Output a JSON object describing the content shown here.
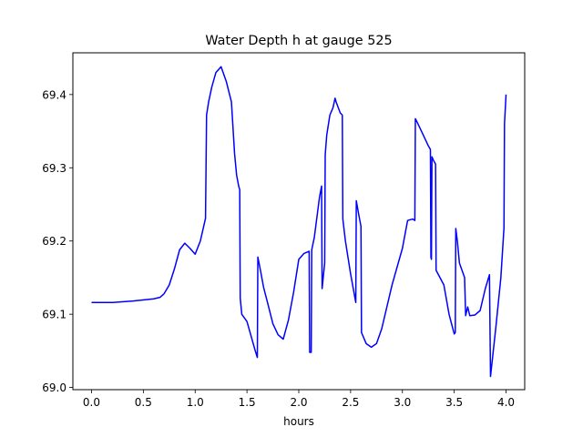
{
  "chart_data": {
    "type": "line",
    "title": "Water Depth h at gauge 525",
    "xlabel": "hours",
    "ylabel": "",
    "xlim": [
      -0.18,
      4.18
    ],
    "ylim": [
      68.997,
      69.457
    ],
    "grid": false,
    "xticks": [
      0.0,
      0.5,
      1.0,
      1.5,
      2.0,
      2.5,
      3.0,
      3.5,
      4.0
    ],
    "xtick_labels": [
      "0.0",
      "0.5",
      "1.0",
      "1.5",
      "2.0",
      "2.5",
      "3.0",
      "3.5",
      "4.0"
    ],
    "yticks": [
      69.0,
      69.1,
      69.2,
      69.3,
      69.4
    ],
    "ytick_labels": [
      "69.0",
      "69.1",
      "69.2",
      "69.3",
      "69.4"
    ],
    "series": [
      {
        "color": "#0000ff",
        "x": [
          0.0,
          0.2,
          0.4,
          0.6,
          0.66,
          0.7,
          0.75,
          0.8,
          0.85,
          0.9,
          0.95,
          1.0,
          1.05,
          1.1,
          1.11,
          1.13,
          1.16,
          1.2,
          1.25,
          1.3,
          1.35,
          1.38,
          1.4,
          1.42,
          1.43,
          1.435,
          1.45,
          1.5,
          1.58,
          1.6,
          1.605,
          1.63,
          1.66,
          1.7,
          1.75,
          1.8,
          1.85,
          1.9,
          1.95,
          2.0,
          2.05,
          2.1,
          2.105,
          2.12,
          2.125,
          2.15,
          2.2,
          2.22,
          2.225,
          2.25,
          2.255,
          2.27,
          2.3,
          2.33,
          2.35,
          2.36,
          2.4,
          2.42,
          2.425,
          2.45,
          2.5,
          2.55,
          2.555,
          2.58,
          2.6,
          2.605,
          2.65,
          2.7,
          2.75,
          2.8,
          2.9,
          3.0,
          3.05,
          3.1,
          3.12,
          3.125,
          3.15,
          3.2,
          3.25,
          3.27,
          3.275,
          3.28,
          3.285,
          3.3,
          3.32,
          3.325,
          3.4,
          3.45,
          3.5,
          3.51,
          3.515,
          3.53,
          3.55,
          3.6,
          3.61,
          3.63,
          3.65,
          3.7,
          3.75,
          3.8,
          3.84,
          3.85,
          3.9,
          3.95,
          3.98,
          3.985,
          4.0
        ],
        "y": [
          69.116,
          69.116,
          69.118,
          69.121,
          69.123,
          69.128,
          69.14,
          69.162,
          69.188,
          69.197,
          69.19,
          69.182,
          69.2,
          69.231,
          69.372,
          69.39,
          69.41,
          69.43,
          69.438,
          69.418,
          69.39,
          69.32,
          69.29,
          69.275,
          69.27,
          69.122,
          69.1,
          69.09,
          69.05,
          69.041,
          69.178,
          69.16,
          69.137,
          69.115,
          69.087,
          69.072,
          69.066,
          69.092,
          69.13,
          69.175,
          69.183,
          69.186,
          69.048,
          69.048,
          69.188,
          69.205,
          69.26,
          69.275,
          69.135,
          69.17,
          69.318,
          69.345,
          69.372,
          69.382,
          69.395,
          69.39,
          69.375,
          69.372,
          69.23,
          69.2,
          69.155,
          69.116,
          69.255,
          69.235,
          69.22,
          69.075,
          69.06,
          69.055,
          69.06,
          69.08,
          69.14,
          69.19,
          69.228,
          69.23,
          69.228,
          69.367,
          69.36,
          69.345,
          69.33,
          69.325,
          69.178,
          69.175,
          69.315,
          69.31,
          69.305,
          69.16,
          69.14,
          69.1,
          69.073,
          69.075,
          69.217,
          69.2,
          69.17,
          69.15,
          69.098,
          69.11,
          69.098,
          69.099,
          69.105,
          69.135,
          69.154,
          69.015,
          69.08,
          69.15,
          69.218,
          69.36,
          69.4
        ]
      }
    ]
  }
}
